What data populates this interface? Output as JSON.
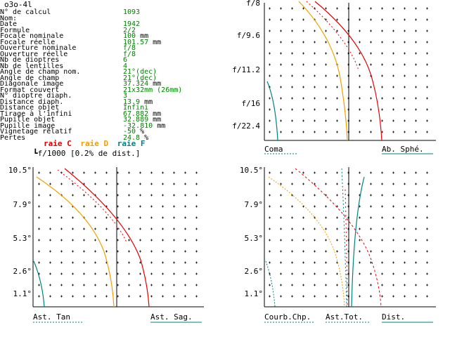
{
  "title": "o3o-4l",
  "params": [
    {
      "label": "N° de calcul",
      "value": "1093",
      "unit": ""
    },
    {
      "label": "Nom:",
      "value": "",
      "unit": ""
    },
    {
      "label": "Date",
      "value": "1942",
      "unit": ""
    },
    {
      "label": "Formule",
      "value": "2/2",
      "unit": ""
    },
    {
      "label": "Focale nominale",
      "value": "100",
      "unit": "mm"
    },
    {
      "label": "Focale réelle",
      "value": "101.57",
      "unit": "mm"
    },
    {
      "label": "Ouverture nominale",
      "value": "f/8",
      "unit": ""
    },
    {
      "label": "Ouverture réelle",
      "value": "f/8",
      "unit": ""
    },
    {
      "label": "Nb de dioptres",
      "value": "6",
      "unit": ""
    },
    {
      "label": "Nb de lentilles",
      "value": "4",
      "unit": ""
    },
    {
      "label": "Angle de champ nom.",
      "value": "21°(dec)",
      "unit": ""
    },
    {
      "label": "Angle de champ",
      "value": "21°(dec)",
      "unit": ""
    },
    {
      "label": "Diagonale image",
      "value": "37.324",
      "unit": "mm"
    },
    {
      "label": "Format couvert",
      "value": "21x32mm (26mm)",
      "unit": ""
    },
    {
      "label": "N° dioptre diaph.",
      "value": "3",
      "unit": ""
    },
    {
      "label": "Distance diaph.",
      "value": "13.9",
      "unit": "mm"
    },
    {
      "label": "Distance objet",
      "value": "Infini",
      "unit": ""
    },
    {
      "label": "Tirage à l'infini",
      "value": "67.882",
      "unit": "mm"
    },
    {
      "label": "Pupille objet",
      "value": "32.889",
      "unit": "mm"
    },
    {
      "label": "Pupille image",
      "value": "-32.810",
      "unit": "mm"
    },
    {
      "label": "Vignetage relatif",
      "value": "-50",
      "unit": "%"
    },
    {
      "label": "Pertes",
      "value": "24.8",
      "unit": "%"
    }
  ],
  "legend": {
    "c": {
      "label": "raie C",
      "color": "#e00000"
    },
    "d": {
      "label": "raie D",
      "color": "#f0a000"
    },
    "f": {
      "label": "raie F",
      "color": "#008080"
    }
  },
  "note": "f/1000 [0.2% de dist.]",
  "panels": {
    "top_right": {
      "y_labels": [
        "f/8",
        "f/9.6",
        "f/11.2",
        "f/16",
        "f/22.4"
      ],
      "bottom_left": "Coma",
      "bottom_right": "Ab. Sphé."
    },
    "bottom_left": {
      "y_labels": [
        "10.5°",
        "7.9°",
        "5.3°",
        "2.6°",
        "1.1°"
      ],
      "bottom_left": "Ast. Tan",
      "bottom_right": "Ast. Sag."
    },
    "bottom_right": {
      "y_labels": [
        "10.5°",
        "7.9°",
        "5.3°",
        "2.6°",
        "1.1°"
      ],
      "bottom_left": "Courb.Chp.",
      "bottom_mid": "Ast.Tot.",
      "bottom_right": "Dist."
    }
  }
}
